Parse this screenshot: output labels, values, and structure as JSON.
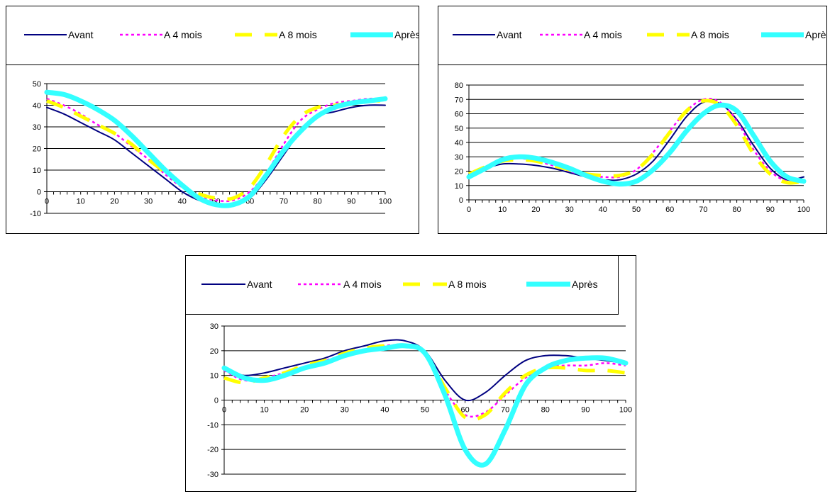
{
  "colors": {
    "avant": "#000080",
    "a4mois": "#ff00ff",
    "a8mois": "#ffff00",
    "apres": "#33ffff",
    "grid": "#000000"
  },
  "chart_data": [
    {
      "type": "line",
      "legend_position": "top",
      "grid": true,
      "xlim": [
        0,
        100
      ],
      "ylim": [
        -10,
        50
      ],
      "xticks": [
        0,
        10,
        20,
        30,
        40,
        50,
        60,
        70,
        80,
        90,
        100
      ],
      "yticks": [
        -10,
        0,
        10,
        20,
        30,
        40,
        50
      ],
      "x": [
        0,
        5,
        10,
        15,
        20,
        25,
        30,
        35,
        40,
        45,
        50,
        55,
        60,
        65,
        70,
        75,
        80,
        85,
        90,
        95,
        100
      ],
      "series": [
        {
          "name": "Avant",
          "values": [
            39,
            36,
            32,
            28,
            24,
            18,
            12,
            6,
            0,
            -4,
            -6,
            -6,
            -3,
            6,
            17,
            28,
            35,
            37,
            39,
            40,
            40
          ]
        },
        {
          "name": "A 4 mois",
          "values": [
            43,
            40,
            36,
            31,
            27,
            21,
            15,
            8,
            2,
            -2,
            -4,
            -4,
            0,
            9,
            22,
            33,
            38,
            41,
            42,
            43,
            43
          ]
        },
        {
          "name": "A 8 mois",
          "values": [
            42,
            39,
            35,
            31,
            27,
            22,
            15,
            9,
            3,
            -1,
            -3,
            -3,
            2,
            13,
            26,
            35,
            39,
            40,
            41,
            42,
            42
          ]
        },
        {
          "name": "Après",
          "values": [
            46,
            45,
            42,
            38,
            33,
            26,
            18,
            10,
            3,
            -3,
            -6,
            -6,
            -2,
            8,
            19,
            28,
            35,
            39,
            41,
            42,
            43
          ]
        }
      ]
    },
    {
      "type": "line",
      "legend_position": "top",
      "grid": true,
      "xlim": [
        0,
        100
      ],
      "ylim": [
        0,
        80
      ],
      "xticks": [
        0,
        10,
        20,
        30,
        40,
        50,
        60,
        70,
        80,
        90,
        100
      ],
      "yticks": [
        0,
        10,
        20,
        30,
        40,
        50,
        60,
        70,
        80
      ],
      "x": [
        0,
        5,
        10,
        15,
        20,
        25,
        30,
        35,
        40,
        45,
        50,
        55,
        60,
        65,
        70,
        75,
        80,
        85,
        90,
        95,
        100
      ],
      "series": [
        {
          "name": "Avant",
          "values": [
            18,
            22,
            25,
            25,
            24,
            22,
            19,
            16,
            14,
            14,
            18,
            27,
            42,
            58,
            68,
            67,
            56,
            38,
            22,
            14,
            16
          ]
        },
        {
          "name": "A 4 mois",
          "values": [
            18,
            23,
            27,
            29,
            27,
            24,
            20,
            17,
            16,
            16,
            21,
            33,
            48,
            62,
            70,
            68,
            55,
            35,
            20,
            13,
            13
          ]
        },
        {
          "name": "A 8 mois",
          "values": [
            18,
            23,
            27,
            28,
            27,
            24,
            21,
            18,
            17,
            17,
            21,
            32,
            47,
            62,
            69,
            66,
            52,
            32,
            18,
            12,
            13
          ]
        },
        {
          "name": "Après",
          "values": [
            16,
            22,
            28,
            30,
            29,
            26,
            22,
            17,
            13,
            11,
            13,
            21,
            33,
            48,
            60,
            66,
            62,
            45,
            27,
            16,
            13
          ]
        }
      ]
    },
    {
      "type": "line",
      "legend_position": "top",
      "grid": true,
      "xlim": [
        0,
        100
      ],
      "ylim": [
        -30,
        30
      ],
      "xticks": [
        0,
        10,
        20,
        30,
        40,
        50,
        60,
        70,
        80,
        90,
        100
      ],
      "yticks": [
        -30,
        -20,
        -10,
        0,
        10,
        20,
        30
      ],
      "x": [
        0,
        5,
        10,
        15,
        20,
        25,
        30,
        35,
        40,
        45,
        50,
        55,
        60,
        65,
        70,
        75,
        80,
        85,
        90,
        95,
        100
      ],
      "series": [
        {
          "name": "Avant",
          "values": [
            12,
            10,
            11,
            13,
            15,
            17,
            20,
            22,
            24,
            24,
            20,
            8,
            0,
            3,
            10,
            16,
            18,
            18,
            17,
            16,
            15
          ]
        },
        {
          "name": "A 4 mois",
          "values": [
            12,
            8,
            9,
            11,
            13,
            16,
            18,
            20,
            22,
            22,
            19,
            4,
            -6,
            -5,
            2,
            9,
            13,
            14,
            14,
            15,
            14
          ]
        },
        {
          "name": "A 8 mois",
          "values": [
            9,
            7,
            9,
            11,
            14,
            16,
            19,
            21,
            22,
            22,
            19,
            5,
            -7,
            -6,
            3,
            10,
            13,
            13,
            12,
            12,
            11
          ]
        },
        {
          "name": "Après",
          "values": [
            13,
            9,
            8,
            10,
            13,
            15,
            18,
            20,
            21,
            22,
            19,
            2,
            -20,
            -26,
            -12,
            6,
            13,
            16,
            17,
            17,
            15
          ]
        }
      ]
    }
  ]
}
